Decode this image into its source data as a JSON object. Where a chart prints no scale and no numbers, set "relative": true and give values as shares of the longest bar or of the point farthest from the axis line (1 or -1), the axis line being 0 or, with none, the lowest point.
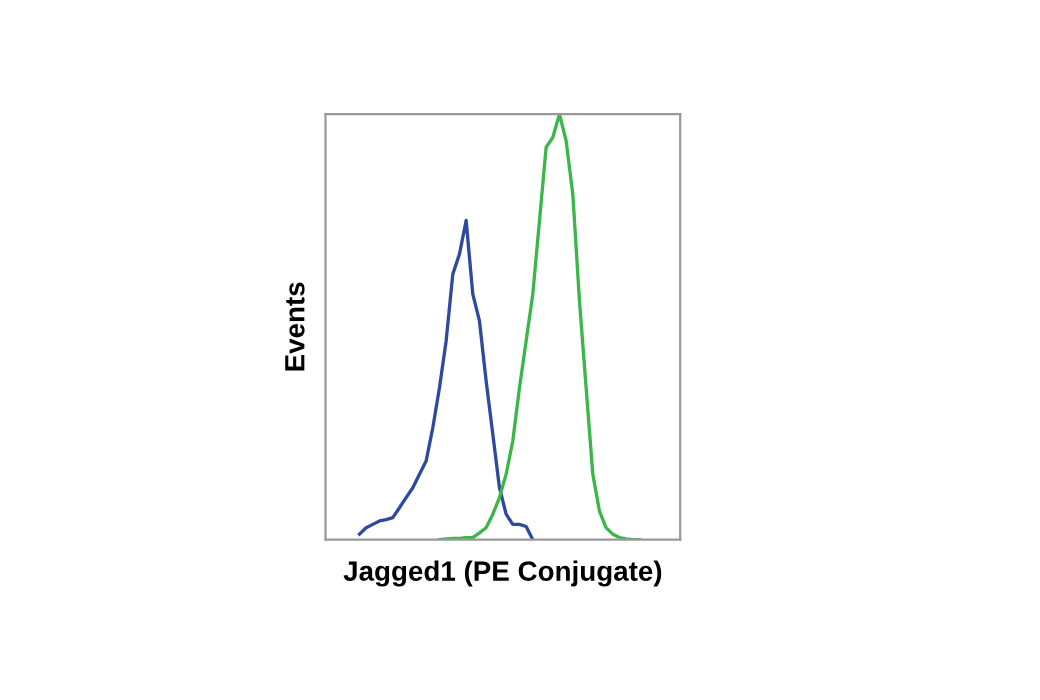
{
  "chart_data": {
    "type": "line",
    "relative": true,
    "xlabel": "Jagged1 (PE Conjugate)",
    "ylabel": "Events",
    "line_style": "solid",
    "marker": "none",
    "grid": false,
    "legend": false,
    "categories": [
      null,
      null,
      null,
      null,
      null,
      null,
      null,
      null,
      null,
      null,
      null,
      null,
      null,
      null,
      null,
      null,
      null,
      null,
      null,
      null,
      null,
      null,
      null,
      null,
      null,
      null,
      null,
      null,
      null,
      null,
      null,
      null,
      null,
      null,
      null,
      null,
      null,
      null,
      null,
      null,
      null,
      null,
      null,
      null,
      null
    ],
    "series": [
      {
        "color": "#2e4a9e",
        "values": [
          null,
          0.013,
          0.028,
          0.036,
          0.044,
          0.047,
          0.052,
          0.075,
          0.099,
          0.122,
          0.154,
          0.185,
          0.263,
          0.357,
          0.467,
          0.624,
          0.671,
          0.75,
          0.577,
          0.514,
          0.373,
          0.248,
          0.122,
          0.06,
          0.036,
          0.036,
          0.031,
          0,
          null,
          null,
          null,
          null,
          null,
          null,
          null,
          null,
          null,
          null,
          null,
          null,
          null,
          null,
          null,
          null,
          null
        ]
      },
      {
        "color": "#3cb54a",
        "values": [
          null,
          null,
          null,
          null,
          null,
          null,
          null,
          null,
          null,
          null,
          null,
          null,
          null,
          0,
          0.002,
          0.003,
          0.003,
          0.005,
          0.005,
          0.016,
          0.028,
          0.06,
          0.099,
          0.154,
          0.232,
          0.357,
          0.467,
          0.577,
          0.749,
          0.922,
          0.945,
          1.0,
          0.937,
          0.812,
          0.561,
          0.357,
          0.154,
          0.067,
          0.028,
          0.013,
          0.005,
          0.002,
          0,
          0,
          null
        ]
      }
    ]
  }
}
